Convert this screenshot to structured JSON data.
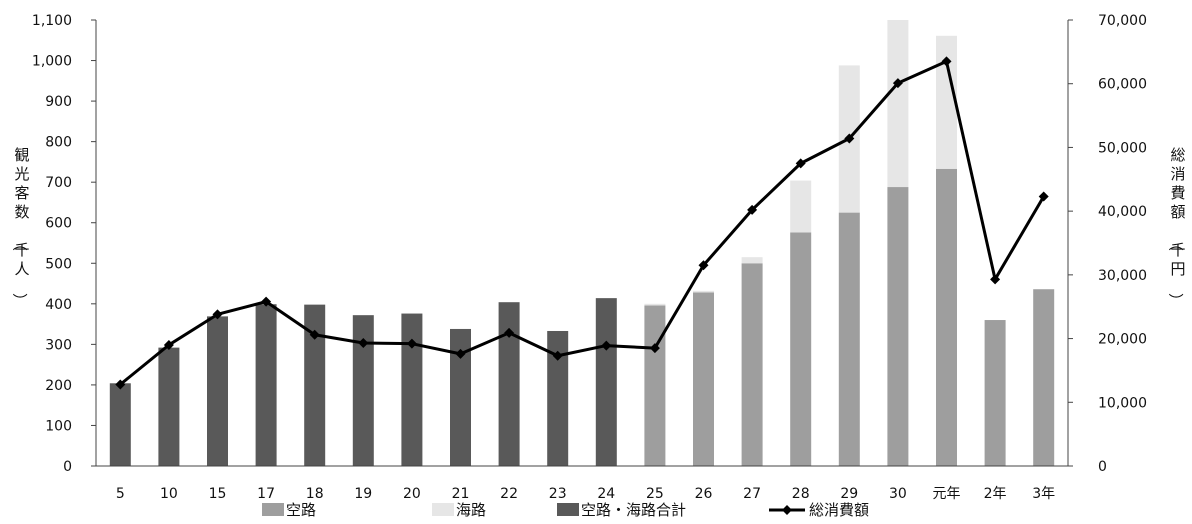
{
  "chart_data": {
    "type": "bar",
    "categories": [
      "5",
      "10",
      "15",
      "17",
      "18",
      "19",
      "20",
      "21",
      "22",
      "23",
      "24",
      "25",
      "26",
      "27",
      "28",
      "29",
      "30",
      "元年",
      "2年",
      "3年"
    ],
    "series": [
      {
        "name": "空路",
        "kind": "bar",
        "color": "#9e9e9e",
        "values": [
          null,
          null,
          null,
          null,
          null,
          null,
          null,
          null,
          null,
          null,
          null,
          396,
          428,
          500,
          576,
          625,
          688,
          733,
          360,
          436
        ]
      },
      {
        "name": "海路",
        "kind": "bar",
        "color": "#e6e6e6",
        "values": [
          null,
          null,
          null,
          null,
          null,
          null,
          null,
          null,
          null,
          null,
          null,
          4,
          4,
          15,
          128,
          363,
          412,
          328,
          0,
          0
        ]
      },
      {
        "name": "空路・海路合計",
        "kind": "bar",
        "color": "#595959",
        "values": [
          204,
          292,
          369,
          399,
          398,
          372,
          376,
          338,
          404,
          333,
          414,
          null,
          null,
          null,
          null,
          null,
          null,
          null,
          null,
          null
        ]
      },
      {
        "name": "総消費額",
        "kind": "line",
        "axis": "right",
        "color": "#000000",
        "values": [
          12800,
          19000,
          23800,
          25800,
          20600,
          19300,
          19200,
          17600,
          20900,
          17300,
          18900,
          18500,
          31500,
          40200,
          47500,
          51400,
          60100,
          63500,
          29300,
          42300
        ]
      }
    ],
    "ylabel": "観光客数（千人）",
    "y2label": "総消費額（千円）",
    "ylim": [
      0,
      1100
    ],
    "y2lim": [
      0,
      70000
    ],
    "yticks": [
      "0",
      "100",
      "200",
      "300",
      "400",
      "500",
      "600",
      "700",
      "800",
      "900",
      "1,000",
      "1,100"
    ],
    "y2ticks": [
      "0",
      "10,000",
      "20,000",
      "30,000",
      "40,000",
      "50,000",
      "60,000",
      "70,000"
    ],
    "grid": false,
    "legend_position": "bottom"
  }
}
